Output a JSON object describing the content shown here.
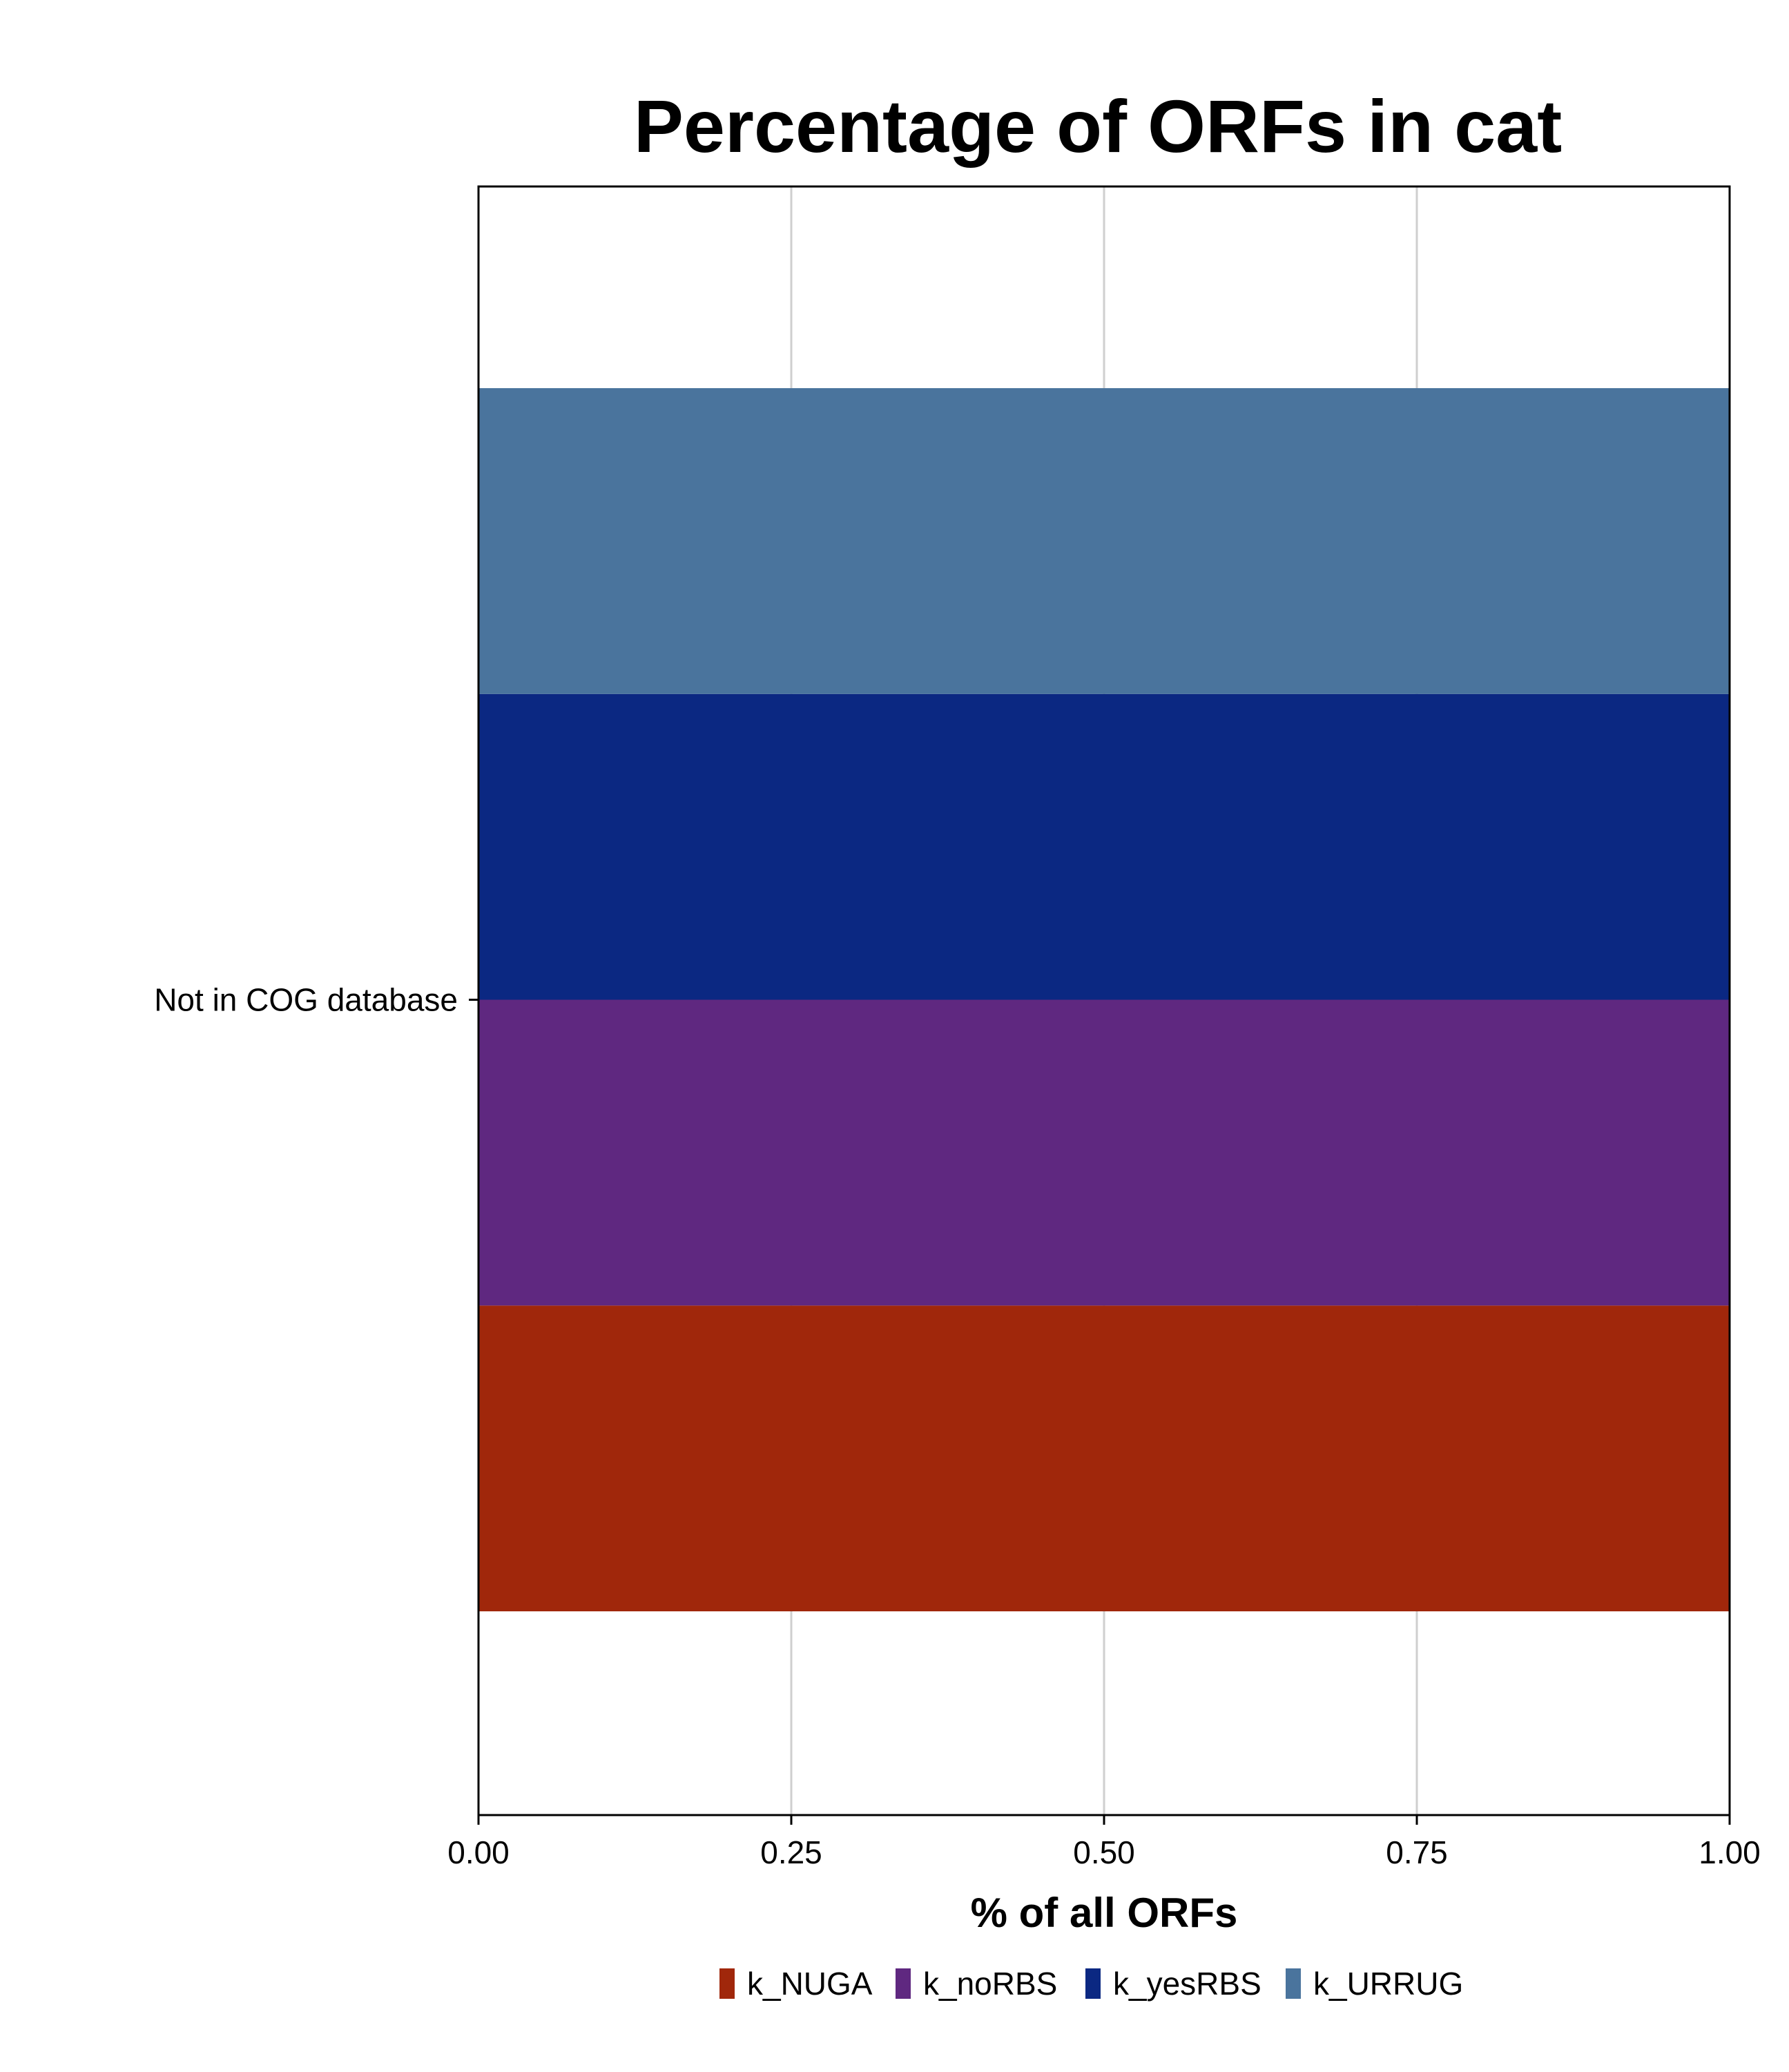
{
  "chart_data": {
    "type": "bar",
    "orientation": "horizontal",
    "title": "Percentage of ORFs in cat",
    "xlabel": "% of all ORFs",
    "ylabel": "",
    "xlim": [
      0,
      1
    ],
    "xticks": [
      "0.00",
      "0.25",
      "0.50",
      "0.75",
      "1.00"
    ],
    "grid": true,
    "legend_position": "bottom",
    "categories": [
      "Not in COG database"
    ],
    "series": [
      {
        "name": "k_NUGA",
        "color": "#A0270B",
        "values": [
          1.0
        ]
      },
      {
        "name": "k_noRBS",
        "color": "#5F2880",
        "values": [
          1.0
        ]
      },
      {
        "name": "k_yesRBS",
        "color": "#0B2882",
        "values": [
          1.0
        ]
      },
      {
        "name": "k_URRUG",
        "color": "#4A749D",
        "values": [
          1.0
        ]
      }
    ]
  }
}
